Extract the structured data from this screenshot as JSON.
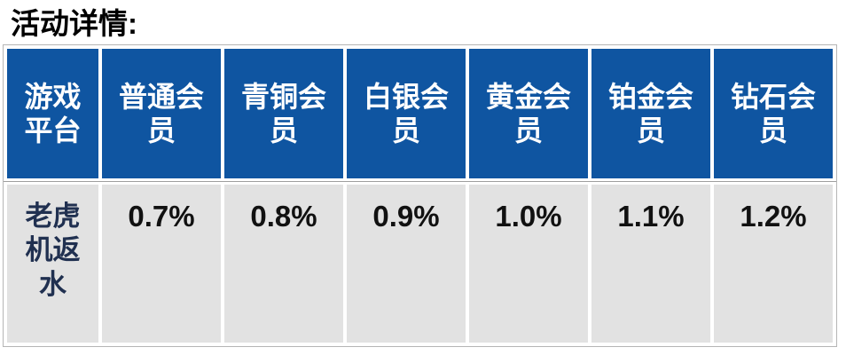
{
  "page": {
    "title": "活动详情:"
  },
  "table": {
    "headers": [
      "游戏平台",
      "普通会员",
      "青铜会员",
      "白银会员",
      "黄金会员",
      "铂金会员",
      "钻石会员"
    ],
    "row": {
      "label": "老虎机返水",
      "values": [
        "0.7%",
        "0.8%",
        "0.9%",
        "1.0%",
        "1.1%",
        "1.2%"
      ]
    },
    "colors": {
      "header_background": "#0f55a1",
      "header_text": "#ffffff",
      "body_background": "#e2e2e2",
      "row_label_text": "#203050",
      "value_text": "#111111",
      "frame_border": "#b5b5b5",
      "divider_line": "#9f9f9f"
    }
  }
}
